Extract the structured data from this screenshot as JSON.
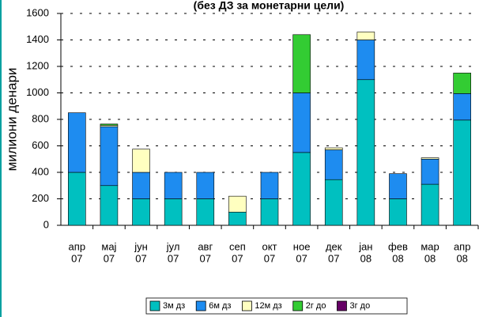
{
  "chart_data": {
    "type": "stacked_bar",
    "title": "(без ДЗ за монетарни цели)",
    "y_label": "милиони денари",
    "categories": [
      [
        "апр",
        "07"
      ],
      [
        "мај",
        "07"
      ],
      [
        "јун",
        "07"
      ],
      [
        "јул",
        "07"
      ],
      [
        "авг",
        "07"
      ],
      [
        "сеп",
        "07"
      ],
      [
        "окт",
        "07"
      ],
      [
        "ное",
        "07"
      ],
      [
        "дек",
        "07"
      ],
      [
        "јан",
        "08"
      ],
      [
        "фев",
        "08"
      ],
      [
        "мар",
        "08"
      ],
      [
        "апр",
        "08"
      ]
    ],
    "series": [
      {
        "name": "3м дз",
        "color": "#00C0C0",
        "values": [
          400,
          300,
          200,
          200,
          200,
          100,
          200,
          550,
          345,
          1100,
          200,
          310,
          795
        ]
      },
      {
        "name": "6м дз",
        "color": "#1E8CF0",
        "values": [
          450,
          445,
          200,
          200,
          200,
          0,
          200,
          450,
          225,
          300,
          190,
          190,
          200
        ]
      },
      {
        "name": "12м дз",
        "color": "#FFFFC0",
        "values": [
          0,
          10,
          175,
          0,
          0,
          120,
          0,
          0,
          15,
          60,
          0,
          10,
          0
        ]
      },
      {
        "name": "2г до",
        "color": "#33CC33",
        "values": [
          0,
          10,
          0,
          0,
          0,
          0,
          0,
          440,
          0,
          0,
          0,
          0,
          155
        ]
      },
      {
        "name": "3г до",
        "color": "#660066",
        "values": [
          0,
          0,
          0,
          0,
          0,
          0,
          0,
          0,
          0,
          0,
          0,
          0,
          0
        ]
      }
    ],
    "ylim": [
      0,
      1600
    ],
    "yticks": [
      0,
      200,
      400,
      600,
      800,
      1000,
      1200,
      1400,
      1600
    ],
    "grid": true
  }
}
